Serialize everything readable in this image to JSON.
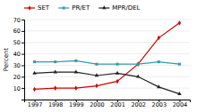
{
  "chart_data": {
    "type": "line",
    "x": [
      1997,
      1998,
      1999,
      2000,
      2001,
      2002,
      2003,
      2004
    ],
    "xlim": [
      1996.5,
      2004.5
    ],
    "xticks": [
      1997,
      1998,
      1999,
      2000,
      2001,
      2002,
      2003,
      2004
    ],
    "ylabel": "Percent",
    "ylim": [
      0,
      70
    ],
    "yticks": [
      {
        "value": 0,
        "label": null
      },
      10,
      20,
      30,
      40,
      50,
      60,
      70
    ],
    "grid": true,
    "series": [
      {
        "name": "SET",
        "color": "#cc0000",
        "marker": "diamond",
        "values": [
          9,
          10,
          10,
          12,
          16,
          31,
          54,
          67
        ]
      },
      {
        "name": "PR/ET",
        "color": "#3399aa",
        "marker": "square",
        "values": [
          33,
          33,
          34,
          31,
          31,
          31,
          33,
          31
        ]
      },
      {
        "name": "MPR/DEL",
        "color": "#222222",
        "marker": "triangle",
        "values": [
          23,
          24,
          24,
          21,
          23,
          20,
          11,
          5
        ]
      }
    ]
  }
}
